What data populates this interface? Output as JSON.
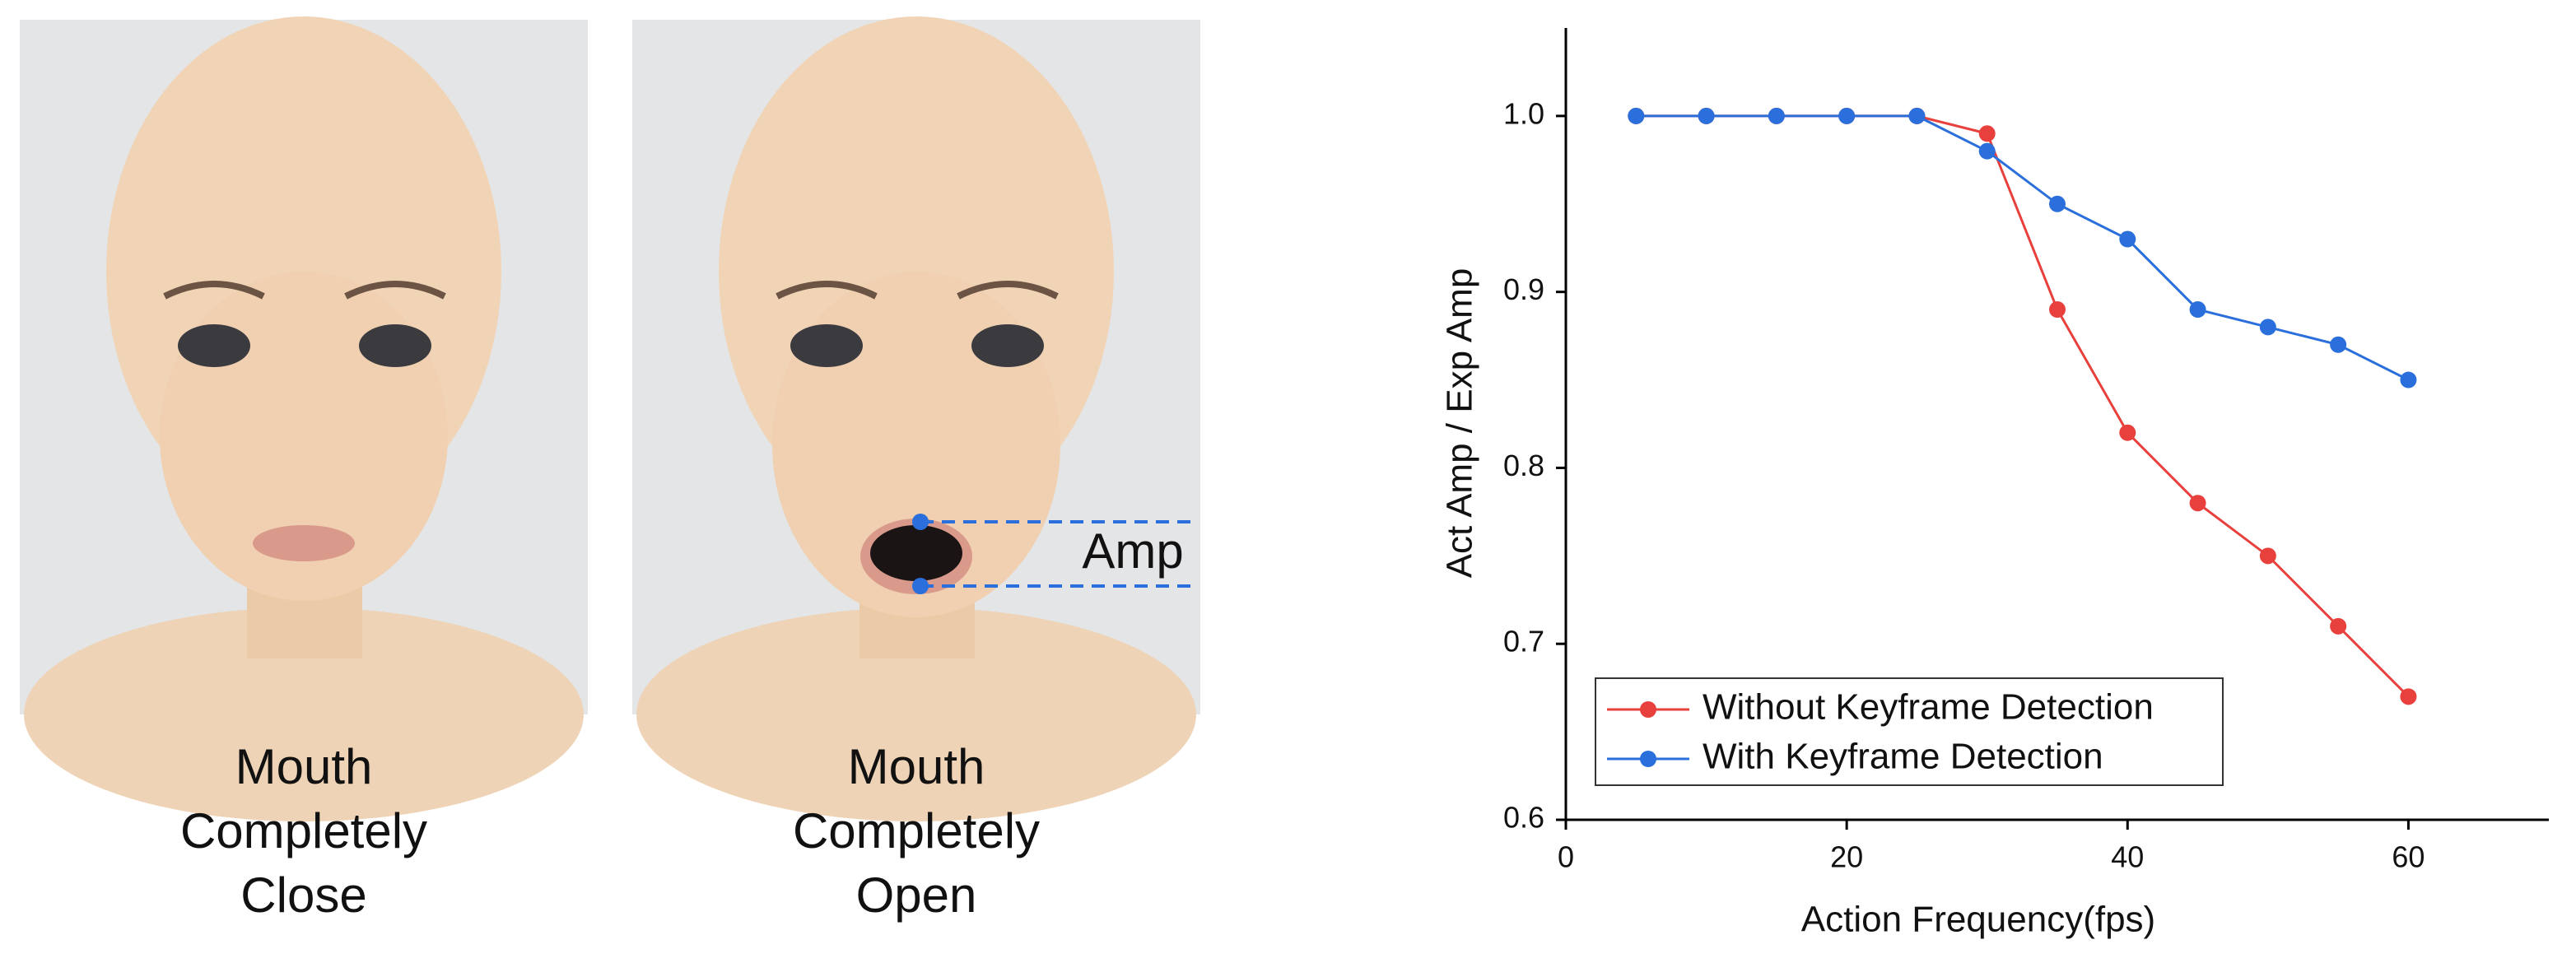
{
  "figure": {
    "panels": [
      {
        "caption": [
          "Mouth",
          "Completely",
          "Close"
        ]
      },
      {
        "caption": [
          "Mouth",
          "Completely",
          "Open"
        ],
        "annotation": "Amp"
      }
    ]
  },
  "chart_data": {
    "type": "line",
    "x_label": "Action Frequency(fps)",
    "y_label": "Act Amp / Exp Amp",
    "x": [
      5,
      10,
      15,
      20,
      25,
      30,
      35,
      40,
      45,
      50,
      55,
      60
    ],
    "series": [
      {
        "name": "Without Keyframe Detection",
        "color": "#e8403c",
        "values": [
          1,
          1,
          1,
          1,
          1,
          0.99,
          0.89,
          0.82,
          0.78,
          0.75,
          0.71,
          0.67
        ]
      },
      {
        "name": "With Keyframe Detection",
        "color": "#2a6fdb",
        "values": [
          1,
          1,
          1,
          1,
          1,
          0.98,
          0.95,
          0.93,
          0.89,
          0.88,
          0.87,
          0.85
        ]
      }
    ],
    "xlim": [
      0,
      70
    ],
    "xticks": [
      0,
      20,
      40,
      60
    ],
    "ylim": [
      0.6,
      1.05
    ],
    "yticks": [
      0.6,
      0.7,
      0.8,
      0.9,
      {
        "value": 1,
        "label": "1.0"
      }
    ],
    "legend": "lower-left"
  }
}
